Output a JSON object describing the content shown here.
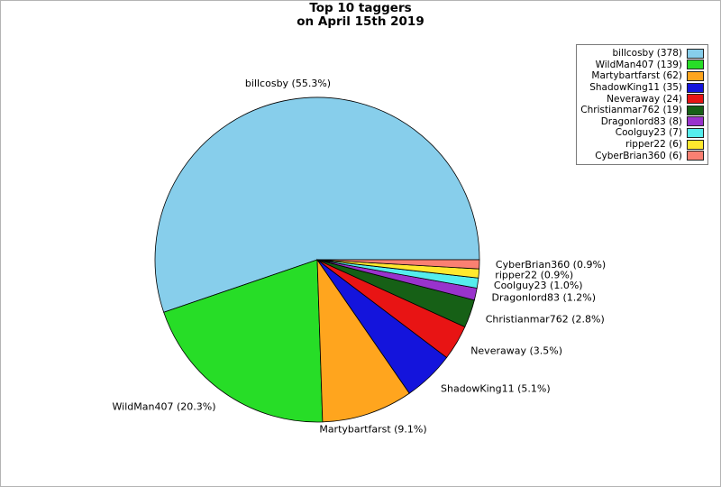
{
  "page": {
    "background": "#ffffff",
    "frame_color": "#b4b4b4"
  },
  "title": {
    "line1": "Top 10 taggers",
    "line2": "on April 15th 2019"
  },
  "chart_data": {
    "type": "pie",
    "title": "Top 10 taggers on April 15th 2019",
    "start_angle_deg": 0,
    "direction": "counterclockwise",
    "label_distance": 1.1,
    "legend_position": "upper right",
    "slice_stroke_color": "#000000",
    "slices": [
      {
        "name": "billcosby",
        "count": 378,
        "percent": 55.3,
        "color": "#87ceeb",
        "label": "billcosby (55.3%)",
        "legend_label": "billcosby (378)"
      },
      {
        "name": "WildMan407",
        "count": 139,
        "percent": 20.3,
        "color": "#27dd27",
        "label": "WildMan407 (20.3%)",
        "legend_label": "WildMan407 (139)"
      },
      {
        "name": "Martybartfarst",
        "count": 62,
        "percent": 9.1,
        "color": "#ffa51e",
        "label": "Martybartfarst (9.1%)",
        "legend_label": "Martybartfarst (62)"
      },
      {
        "name": "ShadowKing11",
        "count": 35,
        "percent": 5.1,
        "color": "#1414dc",
        "label": "ShadowKing11 (5.1%)",
        "legend_label": "ShadowKing11 (35)"
      },
      {
        "name": "Neveraway",
        "count": 24,
        "percent": 3.5,
        "color": "#e81414",
        "label": "Neveraway (3.5%)",
        "legend_label": "Neveraway (24)"
      },
      {
        "name": "Christianmar762",
        "count": 19,
        "percent": 2.8,
        "color": "#166016",
        "label": "Christianmar762 (2.8%)",
        "legend_label": "Christianmar762 (19)"
      },
      {
        "name": "Dragonlord83",
        "count": 8,
        "percent": 1.2,
        "color": "#9933cc",
        "label": "Dragonlord83 (1.2%)",
        "legend_label": "Dragonlord83 (8)"
      },
      {
        "name": "Coolguy23",
        "count": 7,
        "percent": 1.0,
        "color": "#55eded",
        "label": "Coolguy23 (1.0%)",
        "legend_label": "Coolguy23 (7)"
      },
      {
        "name": "ripper22",
        "count": 6,
        "percent": 0.9,
        "color": "#ffe92e",
        "label": "ripper22 (0.9%)",
        "legend_label": "ripper22 (6)"
      },
      {
        "name": "CyberBrian360",
        "count": 6,
        "percent": 0.9,
        "color": "#fa8072",
        "label": "CyberBrian360 (0.9%)",
        "legend_label": "CyberBrian360 (6)"
      }
    ]
  }
}
